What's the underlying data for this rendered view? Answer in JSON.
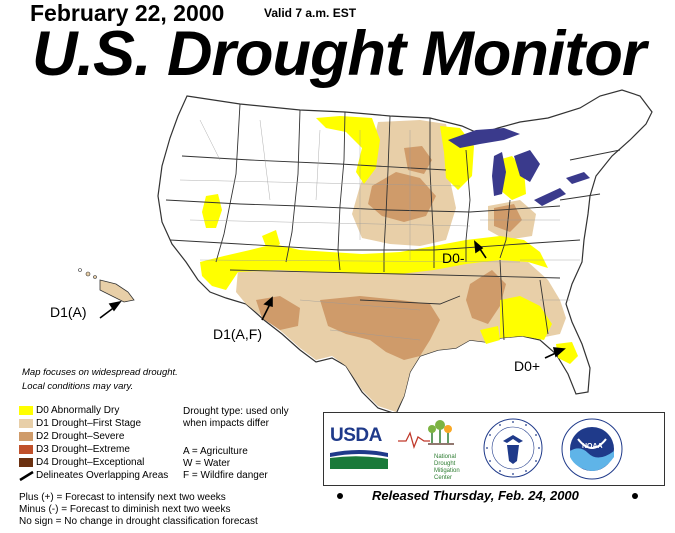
{
  "header": {
    "date": "February 22, 2000",
    "valid": "Valid 7 a.m. EST",
    "title": "U.S. Drought Monitor"
  },
  "map_labels": {
    "hawaii": "D1(A)",
    "southwest": "D1(A,F)",
    "midwest": "D0-",
    "florida": "D0+"
  },
  "note": {
    "line1": "Map focuses on widespread drought.",
    "line2": "Local conditions may vary."
  },
  "legend": {
    "items": [
      {
        "label": "D0 Abnormally Dry",
        "color": "#ffff00"
      },
      {
        "label": "D1 Drought–First Stage",
        "color": "#e8cfa8"
      },
      {
        "label": "D2 Drought–Severe",
        "color": "#cf9b6a"
      },
      {
        "label": "D3 Drought–Extreme",
        "color": "#c0502a"
      },
      {
        "label": "D4 Drought–Exceptional",
        "color": "#6b3010"
      }
    ],
    "delineates": "Delineates Overlapping Areas"
  },
  "drought_type": {
    "line1": "Drought type: used only",
    "line2": "when impacts differ",
    "codes": [
      "A = Agriculture",
      "W = Water",
      "F = Wildfire danger"
    ]
  },
  "forecast": {
    "plus": "Plus (+) = Forecast to intensify next two weeks",
    "minus": "Minus (-) = Forecast to diminish next two weeks",
    "none": "No sign = No change in drought classification forecast"
  },
  "logos": {
    "usda": "USDA",
    "ndmc_line1": "National",
    "ndmc_line2": "Drought",
    "ndmc_line3": "Mitigation",
    "ndmc_line4": "Center",
    "noaa": "NOAA"
  },
  "released": "Released Thursday, Feb. 24, 2000",
  "colors": {
    "water": "#3a3a8c",
    "state_line": "#333333",
    "county_line": "#9a9a9a",
    "d0": "#ffff00",
    "d1": "#e8cfa8",
    "d2": "#cf9b6a"
  }
}
